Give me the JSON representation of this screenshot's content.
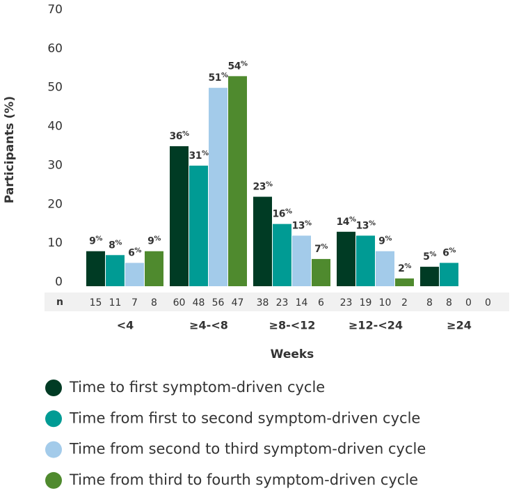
{
  "chart_data": {
    "type": "bar",
    "categories": [
      "<4",
      "≥4-<8",
      "≥8-<12",
      "≥12-<24",
      "≥24"
    ],
    "x_label": "Weeks",
    "y_label": "Participants (%)",
    "n_label": "n",
    "ylim": [
      0,
      70
    ],
    "yticks": [
      0,
      10,
      20,
      30,
      40,
      50,
      60,
      70
    ],
    "grid": false,
    "series": [
      {
        "name": "Time to first symptom-driven cycle",
        "color": "#003b24",
        "values": [
          9,
          36,
          23,
          14,
          5
        ],
        "value_labels": [
          "9%",
          "36%",
          "23%",
          "14%",
          "5%"
        ],
        "n": [
          15,
          60,
          38,
          23,
          8
        ]
      },
      {
        "name": "Time from first to second symptom-driven cycle",
        "color": "#009b94",
        "values": [
          8,
          31,
          16,
          13,
          6
        ],
        "value_labels": [
          "8%",
          "31%",
          "16%",
          "13%",
          "6%"
        ],
        "n": [
          11,
          48,
          23,
          19,
          8
        ]
      },
      {
        "name": "Time from second to third symptom-driven cycle",
        "color": "#a3cbea",
        "values": [
          6,
          51,
          13,
          9,
          null
        ],
        "value_labels": [
          "6%",
          "51%",
          "13%",
          "9%",
          null
        ],
        "n": [
          7,
          56,
          14,
          10,
          0
        ]
      },
      {
        "name": "Time from third to fourth symptom-driven cycle",
        "color": "#4f8a2e",
        "values": [
          9,
          54,
          7,
          2,
          null
        ],
        "value_labels": [
          "9%",
          "54%",
          "7%",
          "2%",
          null
        ],
        "n": [
          8,
          47,
          6,
          2,
          0
        ]
      }
    ]
  }
}
